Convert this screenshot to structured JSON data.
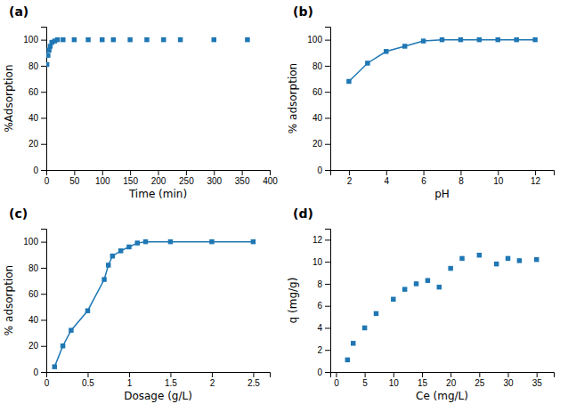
{
  "chart_data": [
    {
      "type": "scatter",
      "title": "(a)",
      "x": [
        1,
        3,
        5,
        7,
        10,
        15,
        20,
        30,
        50,
        75,
        100,
        120,
        150,
        180,
        210,
        240,
        300,
        360
      ],
      "values": [
        81,
        88,
        92,
        95,
        98,
        99,
        100,
        100,
        100,
        100,
        100,
        100,
        100,
        100,
        100,
        100,
        100,
        100
      ],
      "x_label": "Time (min)",
      "y_label": "%Adsorption",
      "xlim": [
        0,
        400
      ],
      "ylim": [
        0,
        110
      ],
      "xticks": [
        0,
        50,
        100,
        150,
        200,
        250,
        300,
        350,
        400
      ],
      "yticks": [
        0,
        20,
        40,
        60,
        80,
        100
      ],
      "marker": "square"
    },
    {
      "type": "line",
      "title": "(b)",
      "x": [
        2,
        3,
        4,
        5,
        6,
        7,
        8,
        9,
        10,
        11,
        12
      ],
      "values": [
        68,
        82,
        91,
        95,
        99,
        100,
        100,
        100,
        100,
        100,
        100
      ],
      "x_label": "pH",
      "y_label": "% adsorption",
      "xlim": [
        1,
        13
      ],
      "ylim": [
        0,
        110
      ],
      "xticks": [
        2,
        4,
        6,
        8,
        10,
        12
      ],
      "yticks": [
        0,
        20,
        40,
        60,
        80,
        100
      ],
      "marker": "square"
    },
    {
      "type": "line",
      "title": "(c)",
      "x": [
        0.1,
        0.2,
        0.3,
        0.5,
        0.7,
        0.75,
        0.8,
        0.9,
        1.0,
        1.1,
        1.2,
        1.5,
        2.0,
        2.5
      ],
      "values": [
        4,
        20,
        32,
        47,
        71,
        82,
        89,
        93,
        96,
        99,
        100,
        100,
        100,
        100
      ],
      "x_label": "Dosage (g/L)",
      "y_label": "% adsorption",
      "xlim": [
        0,
        2.7
      ],
      "ylim": [
        0,
        110
      ],
      "xticks": [
        0,
        0.5,
        1,
        1.5,
        2,
        2.5
      ],
      "yticks": [
        0,
        20,
        40,
        60,
        80,
        100
      ],
      "marker": "square"
    },
    {
      "type": "scatter",
      "title": "(d)",
      "x": [
        2,
        3,
        5,
        7,
        10,
        12,
        14,
        16,
        18,
        20,
        22,
        25,
        28,
        30,
        32,
        35
      ],
      "values": [
        1.1,
        2.6,
        4.0,
        5.3,
        6.6,
        7.5,
        8.0,
        8.3,
        7.7,
        9.4,
        10.3,
        10.6,
        9.8,
        10.3,
        10.1,
        10.2
      ],
      "x_label": "Ce (mg/L)",
      "y_label": "q (mg/g)",
      "xlim": [
        -1,
        38
      ],
      "ylim": [
        0,
        13
      ],
      "xticks": [
        0,
        5,
        10,
        15,
        20,
        25,
        30,
        35
      ],
      "yticks": [
        0,
        2,
        4,
        6,
        8,
        10,
        12
      ],
      "marker": "square"
    }
  ]
}
